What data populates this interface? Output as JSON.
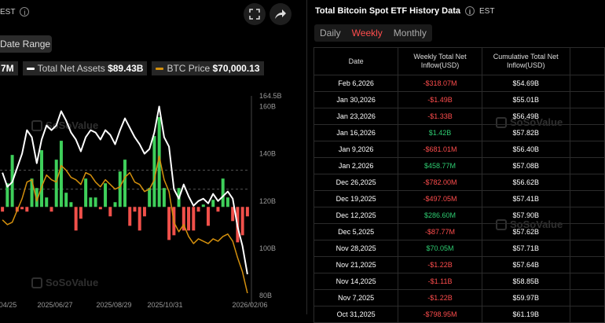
{
  "left": {
    "est_label": "EST",
    "date_range_label": "Date Range",
    "legend": [
      {
        "label": "",
        "value": "7M",
        "color": "#3a3a3a"
      },
      {
        "label": "Total Net Assets",
        "value": "$89.43B",
        "color": "#ffffff"
      },
      {
        "label": "BTC Price",
        "value": "$70,000.13",
        "color": "#d4900d"
      }
    ],
    "watermark": "SoSoValue"
  },
  "right": {
    "title": "Total Bitcoin Spot ETF History Data",
    "est_label": "EST",
    "tabs": [
      {
        "label": "Daily",
        "active": false
      },
      {
        "label": "Weekly",
        "active": true
      },
      {
        "label": "Monthly",
        "active": false
      }
    ],
    "columns": [
      "Date",
      "Weekly Total Net Inflow(USD)",
      "Cumulative Total Net Inflow(USD)",
      ""
    ],
    "rows": [
      {
        "date": "Feb 6,2026",
        "inflow": "-$318.07M",
        "cumulative": "$54.69B"
      },
      {
        "date": "Jan 30,2026",
        "inflow": "-$1.49B",
        "cumulative": "$55.01B"
      },
      {
        "date": "Jan 23,2026",
        "inflow": "-$1.33B",
        "cumulative": "$56.49B"
      },
      {
        "date": "Jan 16,2026",
        "inflow": "$1.42B",
        "cumulative": "$57.82B"
      },
      {
        "date": "Jan 9,2026",
        "inflow": "-$681.01M",
        "cumulative": "$56.40B"
      },
      {
        "date": "Jan 2,2026",
        "inflow": "$458.77M",
        "cumulative": "$57.08B"
      },
      {
        "date": "Dec 26,2025",
        "inflow": "-$782.00M",
        "cumulative": "$56.62B"
      },
      {
        "date": "Dec 19,2025",
        "inflow": "-$497.05M",
        "cumulative": "$57.41B"
      },
      {
        "date": "Dec 12,2025",
        "inflow": "$286.60M",
        "cumulative": "$57.90B"
      },
      {
        "date": "Dec 5,2025",
        "inflow": "-$87.77M",
        "cumulative": "$57.62B"
      },
      {
        "date": "Nov 28,2025",
        "inflow": "$70.05M",
        "cumulative": "$57.71B"
      },
      {
        "date": "Nov 21,2025",
        "inflow": "-$1.22B",
        "cumulative": "$57.64B"
      },
      {
        "date": "Nov 14,2025",
        "inflow": "-$1.11B",
        "cumulative": "$58.85B"
      },
      {
        "date": "Nov 7,2025",
        "inflow": "-$1.22B",
        "cumulative": "$59.97B"
      },
      {
        "date": "Oct 31,2025",
        "inflow": "-$798.95M",
        "cumulative": "$61.19B"
      }
    ],
    "watermark": "SoSoValue"
  },
  "chart_data": {
    "type": "bar",
    "x_tick_labels": [
      "04/25",
      "2025/06/27",
      "2025/08/29",
      "2025/10/31",
      "2026/02/06"
    ],
    "y_tick_labels": [
      "164.5B",
      "160B",
      "140B",
      "120B",
      "100B",
      "80B"
    ],
    "ylim": [
      80,
      164.5
    ],
    "bar_baseline": 117.5,
    "grid": false,
    "series": [
      {
        "kind": "bar",
        "values": [
          -2,
          10,
          22,
          -2,
          -1,
          -2,
          12,
          8,
          24,
          4,
          -2,
          20,
          28,
          6,
          2,
          -10,
          -5,
          12,
          4,
          4,
          -1,
          10,
          -4,
          2,
          15,
          20,
          -8,
          -2,
          -10,
          -4,
          8,
          30,
          38,
          8,
          -14,
          -12,
          8,
          -10,
          -10,
          -10,
          -2,
          1,
          -8,
          3,
          -2,
          12,
          4,
          -6,
          -15,
          -12,
          -4
        ]
      },
      {
        "kind": "line",
        "color": "#ffffff",
        "values": [
          132,
          126,
          128,
          134,
          140,
          150,
          147,
          136,
          146,
          152,
          150,
          152,
          158,
          154,
          149,
          146,
          141,
          147,
          150,
          149,
          146,
          150,
          148,
          144,
          150,
          155,
          151,
          147,
          144,
          140,
          142,
          149,
          160,
          147,
          143,
          125,
          121,
          127,
          122,
          118,
          120,
          121,
          119,
          123,
          120,
          122,
          124,
          121,
          109,
          101,
          89
        ]
      },
      {
        "kind": "line",
        "color": "#d4900d",
        "values": [
          112,
          110,
          111,
          116,
          121,
          128,
          129,
          120,
          126,
          131,
          129,
          128,
          135,
          133,
          130,
          129,
          127,
          132,
          131,
          128,
          126,
          129,
          127,
          125,
          126,
          130,
          132,
          128,
          127,
          124,
          125,
          129,
          139,
          129,
          124,
          111,
          107,
          110,
          105,
          102,
          104,
          103,
          102,
          104,
          103,
          105,
          106,
          103,
          96,
          90,
          81
        ]
      }
    ]
  }
}
